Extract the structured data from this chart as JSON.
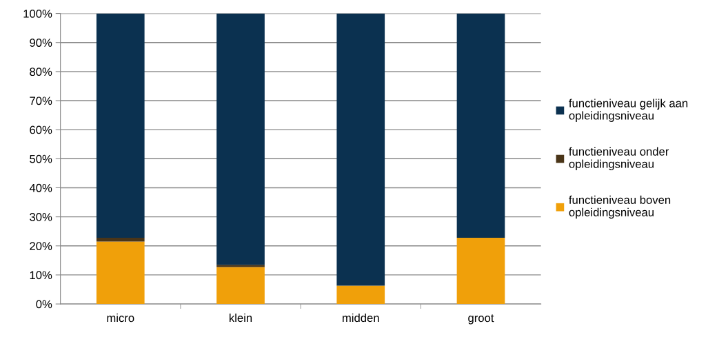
{
  "chart_data": {
    "type": "bar",
    "stacked": true,
    "categories": [
      "micro",
      "klein",
      "midden",
      "groot"
    ],
    "series": [
      {
        "name": "functieniveau boven opleidingsniveau",
        "color": "#f0a00a",
        "values": [
          21.5,
          12.7,
          6.3,
          22.8
        ]
      },
      {
        "name": "functieniveau onder opleidingsniveau",
        "color": "#4a3518",
        "values": [
          1.3,
          0.8,
          0,
          0
        ]
      },
      {
        "name": "functieniveau gelijk aan opleidingsniveau",
        "color": "#0b3150",
        "values": [
          77.2,
          86.5,
          93.7,
          77.2
        ]
      }
    ],
    "ylim": [
      0,
      100
    ],
    "yticks": [
      {
        "value": 0,
        "label": "0%"
      },
      {
        "value": 10,
        "label": "10%"
      },
      {
        "value": 20,
        "label": "20%"
      },
      {
        "value": 30,
        "label": "30%"
      },
      {
        "value": 40,
        "label": "40%"
      },
      {
        "value": 50,
        "label": "50%"
      },
      {
        "value": 60,
        "label": "60%"
      },
      {
        "value": 70,
        "label": "70%"
      },
      {
        "value": 80,
        "label": "80%"
      },
      {
        "value": 90,
        "label": "90%"
      },
      {
        "value": 100,
        "label": "100%"
      }
    ],
    "grid": "y",
    "legend": "right"
  }
}
